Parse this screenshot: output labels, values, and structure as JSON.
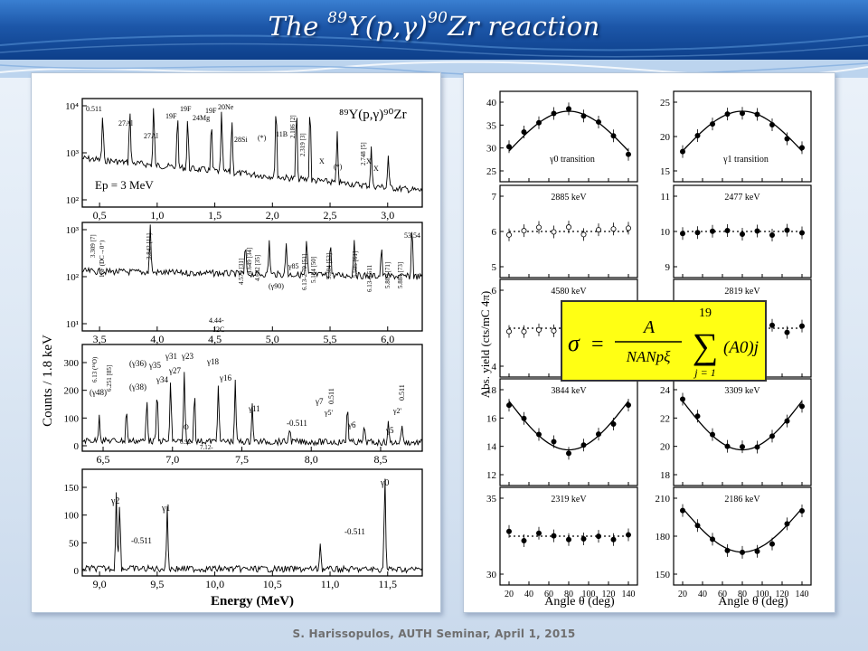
{
  "header": {
    "title_pre": "The ",
    "mass_y": "89",
    "title_mid": "Y(p,γ)",
    "mass_zr": "90",
    "title_post": "Zr reaction"
  },
  "left": {
    "spectrum1": {
      "reaction_label": "⁸⁹Y(p,γ)⁹⁰Zr",
      "energy_label": "Ep = 3 MeV",
      "ticks_x": [
        "0,5",
        "1,0",
        "1,5",
        "2,0",
        "2,5",
        "3,0"
      ],
      "ticks_y": [
        "10⁴",
        "10³",
        "10²"
      ],
      "peak_labels": [
        "0.511",
        "27Al",
        "27Al",
        "19F",
        "19F",
        "24Mg",
        "19F",
        "20Ne",
        "28Si",
        "(*)",
        "11B",
        "2.186 [2]",
        "2.319 [3]",
        "X",
        "(*)",
        "X",
        "X",
        "2.748 [5]"
      ]
    },
    "spectrum2": {
      "ticks_x": [
        "3,5",
        "4,0",
        "4,5",
        "5,0",
        "5,5",
        "6,0"
      ],
      "ticks_y": [
        "10³",
        "10²",
        "10¹"
      ],
      "peak_labels": [
        "3.309 [7]",
        "16F (DC→0⁺)",
        "3.842 [11]",
        "4.579 [31]",
        "4.649 [34]",
        "4.682 [35]",
        "γ85",
        "(γ90)",
        "6.13-2.79 [51]",
        "5.184 [50]",
        "5.304 [53]",
        "5.505 [61]",
        "6.13-0.511",
        "5.809 [71]",
        "5.884 [73]",
        "53,54",
        "4.44-",
        "12C"
      ]
    },
    "spectrum3": {
      "ticks_x": [
        "6,5",
        "7,0",
        "7,5",
        "8,0",
        "8,5"
      ],
      "ticks_y": [
        "0",
        "100",
        "200",
        "300"
      ],
      "peak_labels": [
        "(γ48)",
        "6.13 (¹⁶O)",
        "6.251 [85]",
        "(γ38)",
        "(γ36)",
        "γ35",
        "γ34",
        "γ31",
        "γ27",
        "γ23",
        "γ18",
        "γ16",
        "6.92-",
        "O",
        "7.12-",
        "γ11",
        "-0.511",
        "γ7",
        "γ5'",
        "0.511",
        "γ6",
        "γ5",
        "γ2'",
        "0.511"
      ]
    },
    "spectrum4": {
      "ticks_x": [
        "9,0",
        "9,5",
        "10,0",
        "10,5",
        "11,0",
        "11,5"
      ],
      "ticks_y": [
        "0",
        "50",
        "100",
        "150"
      ],
      "peak_labels": [
        "γ2",
        "γ1",
        "γ0",
        "-0.511",
        "-0.511"
      ]
    },
    "ylabel": "Counts / 1.8 keV",
    "xlabel": "Energy   (MeV)"
  },
  "right": {
    "ylabel": "Abs. yield  (cts/mC 4π)",
    "xlabel_left": "Angle  θ  (deg)",
    "xlabel_right": "Angle  θ  (deg)",
    "x_ticks": [
      "20",
      "40",
      "60",
      "80",
      "100",
      "120",
      "140"
    ],
    "panels": [
      {
        "label": "γ0 transition",
        "y_ticks": [
          "25",
          "30",
          "35",
          "40"
        ]
      },
      {
        "label": "γ1 transition",
        "y_ticks": [
          "15",
          "20",
          "25"
        ]
      },
      {
        "label": "2885 keV",
        "y_ticks": [
          "5",
          "6",
          "7"
        ]
      },
      {
        "label": "2477 keV",
        "y_ticks": [
          "9",
          "10",
          "11"
        ]
      },
      {
        "label": "4580 keV",
        "y_ticks": [
          "4",
          "6"
        ]
      },
      {
        "label": "2819 keV",
        "y_ticks": []
      },
      {
        "label": "3844 keV",
        "y_ticks": [
          "12",
          "14",
          "16",
          "18"
        ]
      },
      {
        "label": "3309 keV",
        "y_ticks": [
          "18",
          "20",
          "22",
          "24"
        ]
      },
      {
        "label": "2319 keV",
        "y_ticks": [
          "30",
          "35"
        ]
      },
      {
        "label": "2186 keV",
        "y_ticks": [
          "150",
          "180",
          "210"
        ]
      }
    ]
  },
  "formula": {
    "sigma": "σ",
    "eq": "=",
    "numer": "A",
    "denom": "NANpξ",
    "sum_upper": "19",
    "sum_lower": "j = 1",
    "summand": "(A0)j"
  },
  "footer": "S. Harissopulos, AUTH Seminar, April 1, 2015"
}
